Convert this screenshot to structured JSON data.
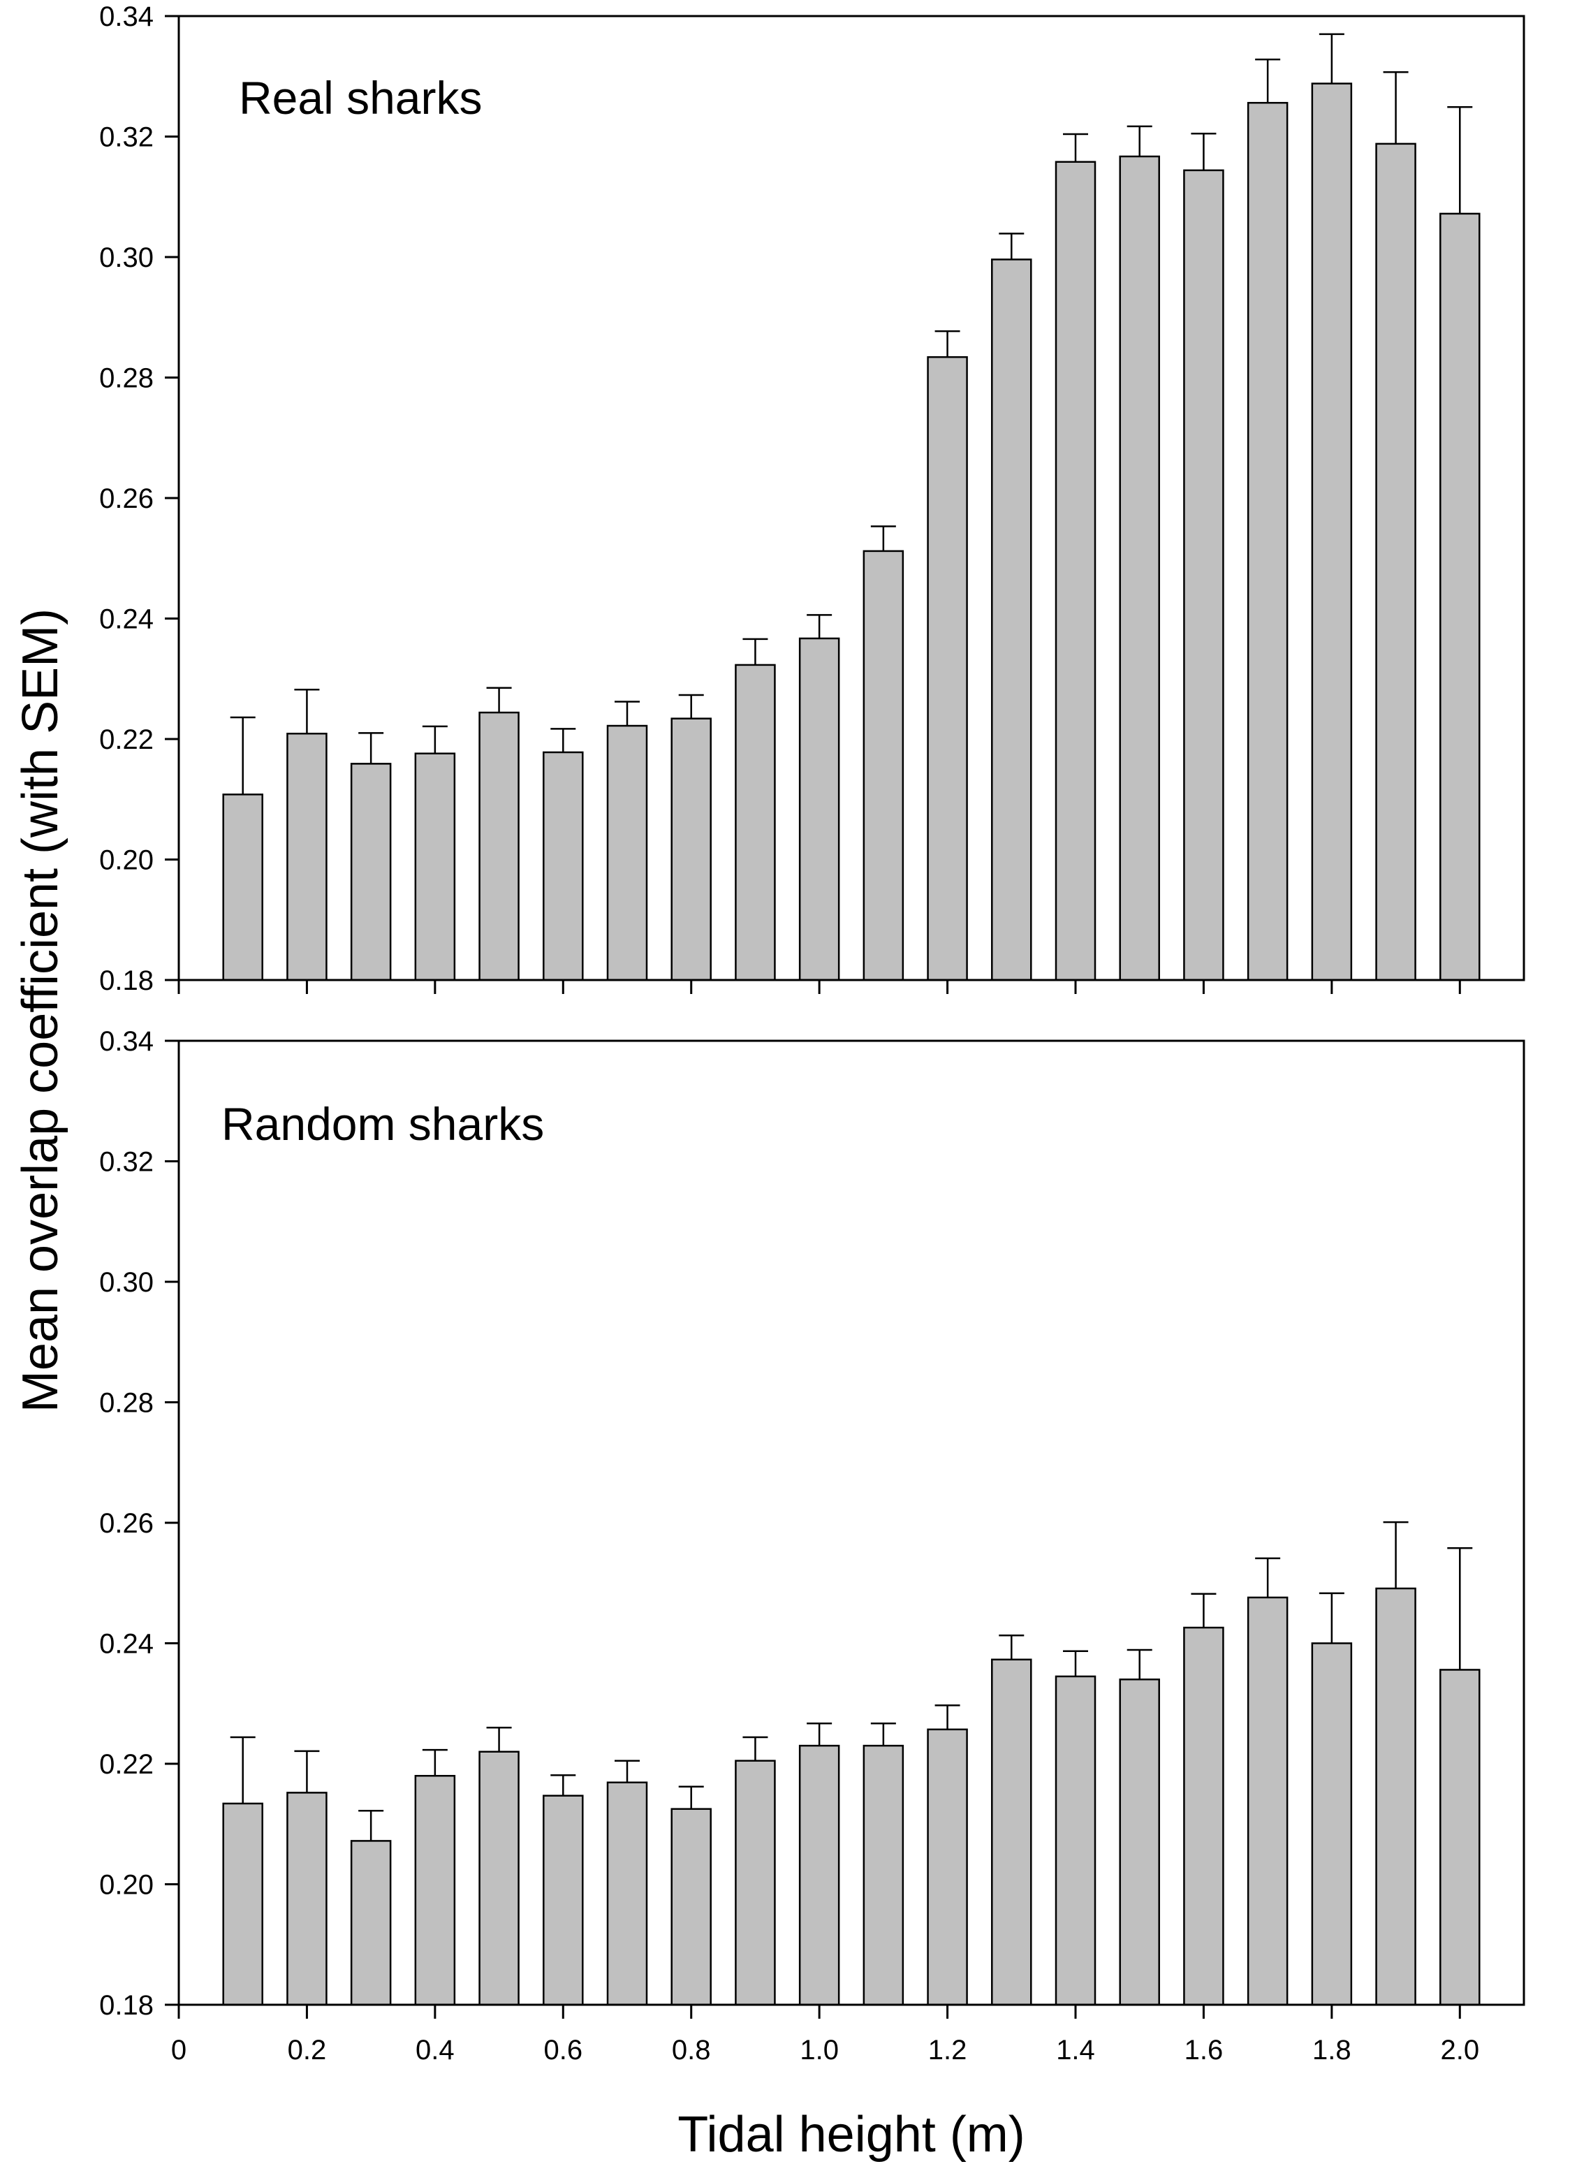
{
  "chart_data": [
    {
      "type": "bar",
      "panel_label": "Real sharks",
      "x": [
        0.1,
        0.2,
        0.3,
        0.4,
        0.5,
        0.6,
        0.7,
        0.8,
        0.9,
        1.0,
        1.1,
        1.2,
        1.3,
        1.4,
        1.5,
        1.6,
        1.7,
        1.8,
        1.9,
        2.0
      ],
      "values": [
        0.2108,
        0.2209,
        0.2159,
        0.2176,
        0.2244,
        0.2178,
        0.2222,
        0.2234,
        0.2323,
        0.2367,
        0.2512,
        0.2834,
        0.2996,
        0.3158,
        0.3167,
        0.3144,
        0.3256,
        0.3288,
        0.3188,
        0.3072
      ],
      "error": [
        0.0128,
        0.0073,
        0.0051,
        0.0045,
        0.0041,
        0.0039,
        0.004,
        0.0039,
        0.0043,
        0.0039,
        0.0041,
        0.0043,
        0.0043,
        0.0046,
        0.005,
        0.0061,
        0.0072,
        0.0082,
        0.0119,
        0.0177
      ],
      "ylim": [
        0.18,
        0.34
      ],
      "yticks": [
        0.18,
        0.2,
        0.22,
        0.24,
        0.26,
        0.28,
        0.3,
        0.32,
        0.34
      ],
      "yticklabels": [
        "0.18",
        "0.20",
        "0.22",
        "0.24",
        "0.26",
        "0.28",
        "0.30",
        "0.32",
        "0.34"
      ],
      "xlim": [
        0,
        2.1
      ],
      "bar_color": "#c0c0c0"
    },
    {
      "type": "bar",
      "panel_label": "Random sharks",
      "x": [
        0.1,
        0.2,
        0.3,
        0.4,
        0.5,
        0.6,
        0.7,
        0.8,
        0.9,
        1.0,
        1.1,
        1.2,
        1.3,
        1.4,
        1.5,
        1.6,
        1.7,
        1.8,
        1.9,
        2.0
      ],
      "values": [
        0.2134,
        0.2152,
        0.2072,
        0.218,
        0.222,
        0.2147,
        0.2169,
        0.2125,
        0.2205,
        0.223,
        0.223,
        0.2257,
        0.2373,
        0.2345,
        0.234,
        0.2426,
        0.2476,
        0.24,
        0.2491,
        0.2356
      ],
      "error": [
        0.011,
        0.0069,
        0.005,
        0.0043,
        0.004,
        0.0034,
        0.0036,
        0.0037,
        0.0039,
        0.0037,
        0.0037,
        0.004,
        0.004,
        0.0042,
        0.0049,
        0.0056,
        0.0065,
        0.0083,
        0.011,
        0.0202
      ],
      "ylim": [
        0.18,
        0.34
      ],
      "yticks": [
        0.18,
        0.2,
        0.22,
        0.24,
        0.26,
        0.28,
        0.3,
        0.32,
        0.34
      ],
      "yticklabels": [
        "0.18",
        "0.20",
        "0.22",
        "0.24",
        "0.26",
        "0.28",
        "0.30",
        "0.32",
        "0.34"
      ],
      "xlim": [
        0,
        2.1
      ],
      "xticks": [
        0,
        0.2,
        0.4,
        0.6,
        0.8,
        1.0,
        1.2,
        1.4,
        1.6,
        1.8,
        2.0
      ],
      "xticklabels": [
        "0",
        "0.2",
        "0.4",
        "0.6",
        "0.8",
        "1.0",
        "1.2",
        "1.4",
        "1.6",
        "1.8",
        "2.0"
      ],
      "bar_color": "#c0c0c0"
    }
  ],
  "axes": {
    "xlabel": "Tidal height (m)",
    "ylabel": "Mean overlap coefficient (with SEM)"
  }
}
